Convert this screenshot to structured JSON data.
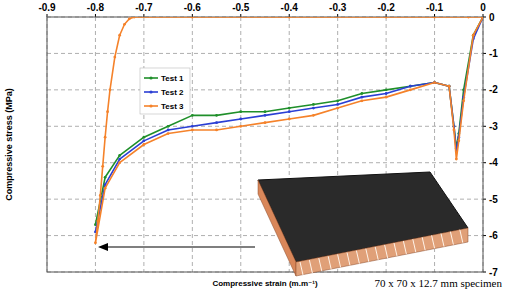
{
  "chart_data": {
    "type": "line",
    "x_label": "Compressive strain (m.m⁻¹)",
    "y_label": "Compressive stress (MPa)",
    "annotation": "70 x 70 x 12.7 mm specimen",
    "xlim": [
      -0.9,
      0
    ],
    "ylim": [
      -7,
      0
    ],
    "xticks": [
      -0.9,
      -0.8,
      -0.7,
      -0.6,
      -0.5,
      -0.4,
      -0.3,
      -0.2,
      -0.1,
      0
    ],
    "yticks": [
      0,
      -1,
      -2,
      -3,
      -4,
      -5,
      -6,
      -7
    ],
    "grid": true,
    "legend": "upper left",
    "series": [
      {
        "name": "Test 1",
        "color": "#1f8f2a",
        "marker": "circle",
        "line_style": "solid",
        "x": [
          0,
          -0.02,
          -0.04,
          -0.05,
          -0.055,
          -0.06,
          -0.07,
          -0.1,
          -0.15,
          -0.2,
          -0.25,
          -0.3,
          -0.35,
          -0.4,
          -0.45,
          -0.5,
          -0.55,
          -0.6,
          -0.65,
          -0.7,
          -0.75,
          -0.78,
          -0.8
        ],
        "values": [
          0,
          -0.5,
          -2.0,
          -3.2,
          -3.6,
          -3.0,
          -1.9,
          -1.8,
          -1.9,
          -2.0,
          -2.1,
          -2.3,
          -2.4,
          -2.5,
          -2.6,
          -2.6,
          -2.7,
          -2.7,
          -3.0,
          -3.3,
          -3.8,
          -4.4,
          -5.7
        ]
      },
      {
        "name": "Test 2",
        "color": "#2b3fd4",
        "marker": "circle",
        "line_style": "solid",
        "x": [
          0,
          -0.02,
          -0.04,
          -0.05,
          -0.055,
          -0.06,
          -0.07,
          -0.1,
          -0.15,
          -0.2,
          -0.25,
          -0.3,
          -0.35,
          -0.4,
          -0.45,
          -0.5,
          -0.55,
          -0.6,
          -0.65,
          -0.7,
          -0.75,
          -0.78,
          -0.8
        ],
        "values": [
          0,
          -0.6,
          -2.2,
          -3.3,
          -3.7,
          -3.0,
          -1.9,
          -1.8,
          -1.9,
          -2.1,
          -2.2,
          -2.4,
          -2.5,
          -2.6,
          -2.7,
          -2.8,
          -2.9,
          -3.0,
          -3.1,
          -3.4,
          -3.9,
          -4.6,
          -5.9
        ]
      },
      {
        "name": "Test 3",
        "color": "#f5822a",
        "marker": "circle",
        "line_style": "solid",
        "x": [
          0,
          -0.02,
          -0.04,
          -0.05,
          -0.055,
          -0.06,
          -0.07,
          -0.1,
          -0.15,
          -0.2,
          -0.25,
          -0.3,
          -0.35,
          -0.4,
          -0.45,
          -0.5,
          -0.55,
          -0.6,
          -0.65,
          -0.7,
          -0.75,
          -0.78,
          -0.8,
          -0.795,
          -0.79,
          -0.785,
          -0.78,
          -0.775,
          -0.77,
          -0.76,
          -0.75,
          -0.74,
          -0.73,
          -0.72,
          -0.6,
          -0.4,
          -0.2,
          -0.1,
          -0.03,
          0
        ],
        "values": [
          0,
          -0.5,
          -2.3,
          -3.4,
          -3.9,
          -3.1,
          -1.9,
          -1.8,
          -2.0,
          -2.2,
          -2.3,
          -2.5,
          -2.7,
          -2.8,
          -2.9,
          -3.0,
          -3.1,
          -3.1,
          -3.2,
          -3.5,
          -4.0,
          -4.7,
          -6.2,
          -5.6,
          -4.9,
          -4.1,
          -3.3,
          -2.6,
          -2.0,
          -1.1,
          -0.5,
          -0.2,
          -0.05,
          0,
          0,
          0,
          0,
          0,
          0,
          0
        ]
      }
    ]
  }
}
